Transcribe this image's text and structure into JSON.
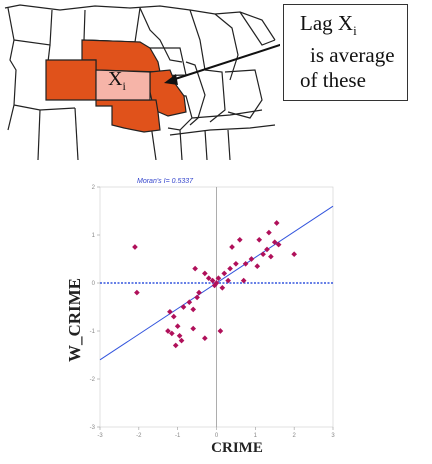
{
  "map": {
    "xi_main": "X",
    "xi_sub": "i"
  },
  "callout": {
    "line1_main": "Lag X",
    "line1_sub": "i",
    "line2": "is average",
    "line3": "of these"
  },
  "colors": {
    "neighbor_fill": "#e0521b",
    "focal_fill": "#f6b4a8",
    "state_line": "#222222",
    "point": "#b0105a",
    "regression_line": "#3355dd",
    "zero_line": "#3355dd",
    "axis_line": "#999999"
  },
  "chart_data": {
    "type": "scatter",
    "title": "Moran's I= 0.5337",
    "xlabel": "CRIME",
    "ylabel": "W_CRIME",
    "xlim": [
      -3,
      3
    ],
    "ylim": [
      -3,
      2
    ],
    "x_ticks": [
      -3,
      -2,
      -1,
      0,
      1,
      2,
      3
    ],
    "y_ticks": [
      -3,
      -2,
      -1,
      0,
      1,
      2
    ],
    "regression": {
      "slope": 0.5337,
      "intercept": 0
    },
    "points": [
      [
        -2.1,
        0.75
      ],
      [
        -2.05,
        -0.2
      ],
      [
        -1.2,
        -0.6
      ],
      [
        -1.1,
        -0.7
      ],
      [
        -1.0,
        -0.9
      ],
      [
        -1.25,
        -1.0
      ],
      [
        -1.15,
        -1.05
      ],
      [
        -0.95,
        -1.1
      ],
      [
        -0.9,
        -1.2
      ],
      [
        -1.05,
        -1.3
      ],
      [
        -0.85,
        -0.5
      ],
      [
        -0.7,
        -0.4
      ],
      [
        -0.6,
        -0.55
      ],
      [
        -0.5,
        -0.3
      ],
      [
        -0.45,
        -0.2
      ],
      [
        -0.55,
        0.3
      ],
      [
        -0.3,
        0.2
      ],
      [
        -0.2,
        0.1
      ],
      [
        -0.1,
        0.05
      ],
      [
        -0.05,
        -0.05
      ],
      [
        0.0,
        0.0
      ],
      [
        0.05,
        0.1
      ],
      [
        0.15,
        -0.1
      ],
      [
        0.2,
        0.2
      ],
      [
        0.1,
        -1.0
      ],
      [
        -0.3,
        -1.15
      ],
      [
        -0.6,
        -0.95
      ],
      [
        0.3,
        0.05
      ],
      [
        0.35,
        0.3
      ],
      [
        0.5,
        0.4
      ],
      [
        0.4,
        0.75
      ],
      [
        0.6,
        0.9
      ],
      [
        0.75,
        0.4
      ],
      [
        0.9,
        0.5
      ],
      [
        1.05,
        0.35
      ],
      [
        1.2,
        0.6
      ],
      [
        1.3,
        0.7
      ],
      [
        1.4,
        0.55
      ],
      [
        1.5,
        0.85
      ],
      [
        1.35,
        1.05
      ],
      [
        1.55,
        1.25
      ],
      [
        1.6,
        0.8
      ],
      [
        2.0,
        0.6
      ],
      [
        1.1,
        0.9
      ],
      [
        0.7,
        0.05
      ]
    ]
  }
}
